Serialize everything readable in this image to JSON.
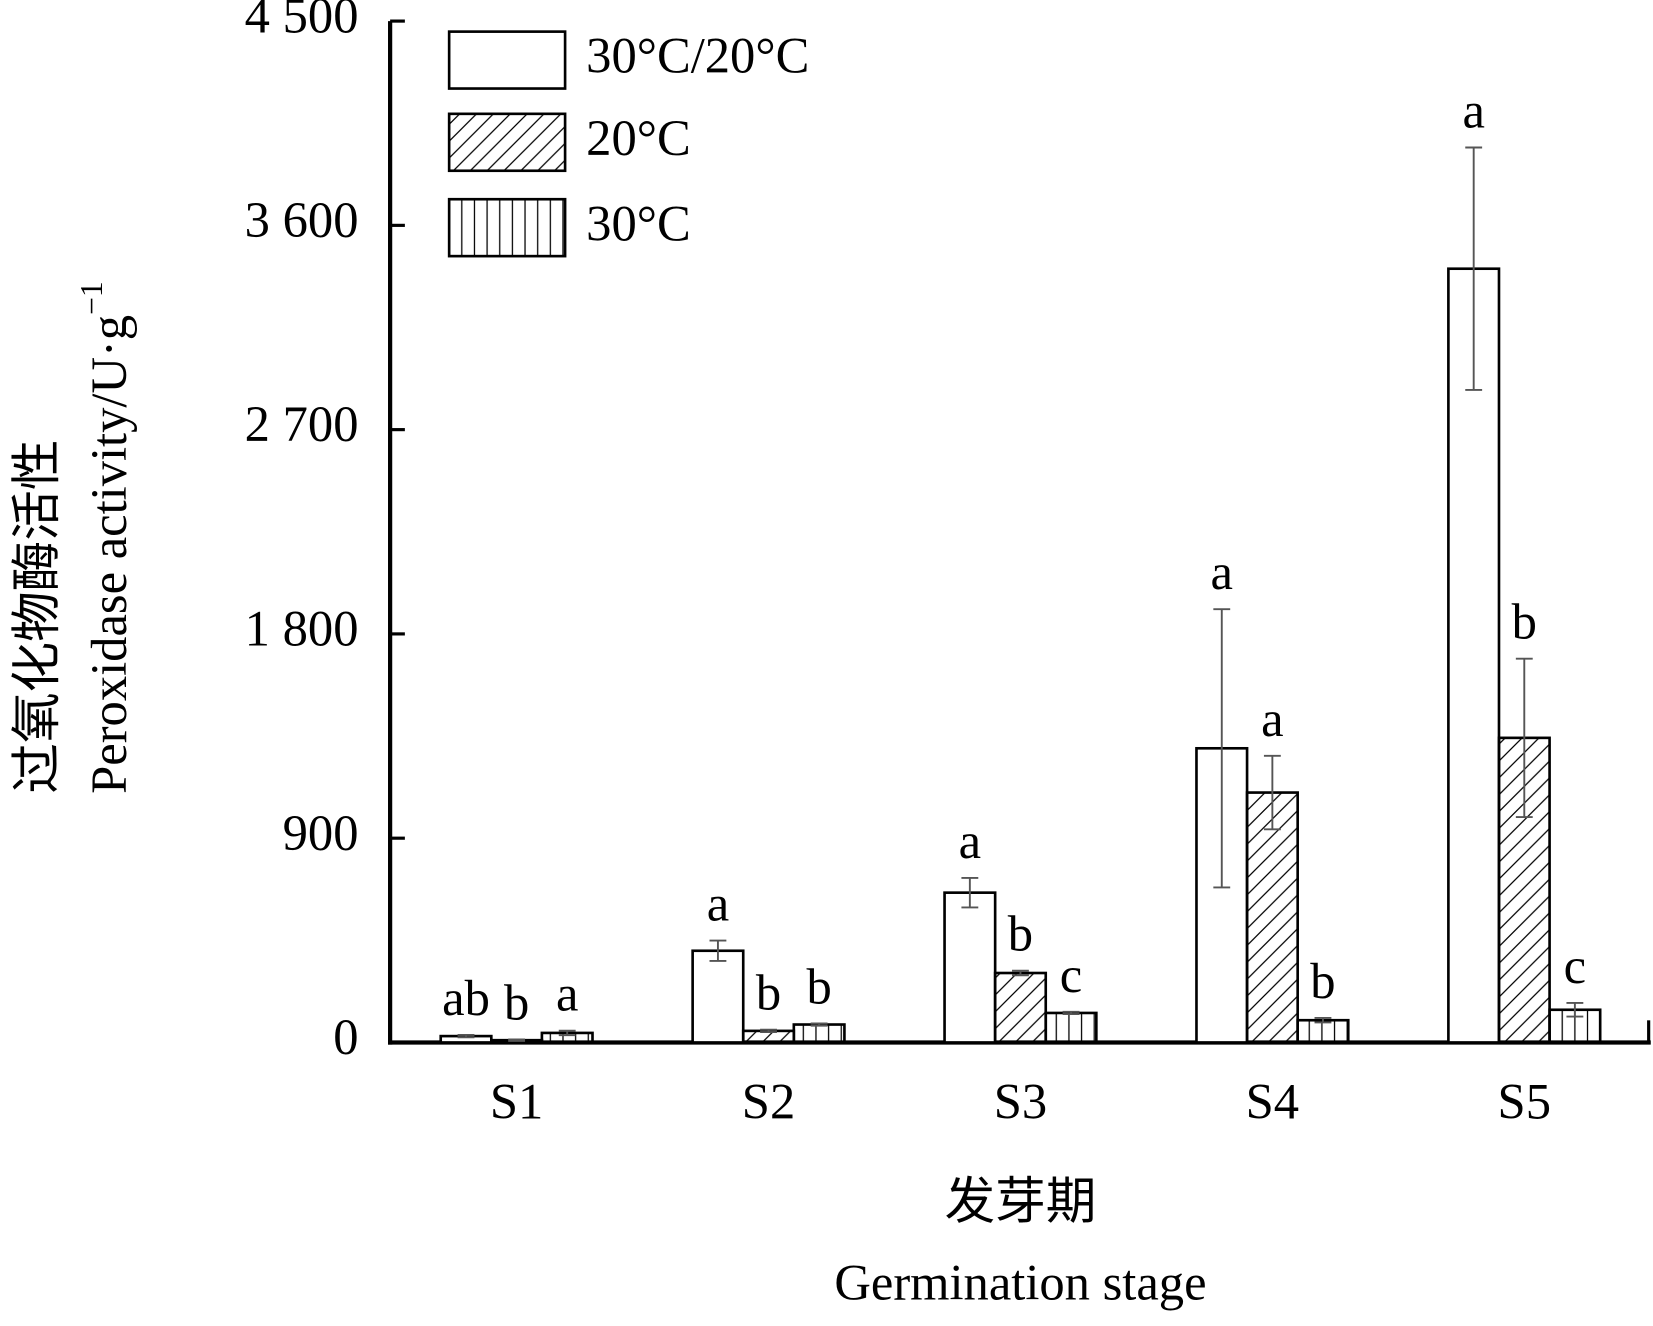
{
  "chart_data": {
    "type": "bar",
    "ylabel_cn": "过氧化物酶活性",
    "ylabel_en": "Peroxidase activity/U·g",
    "ylabel_sup": "−1",
    "xlabel_cn": "发芽期",
    "xlabel_en": "Germination stage",
    "categories": [
      "S1",
      "S2",
      "S3",
      "S4",
      "S5"
    ],
    "series": [
      {
        "name": "30°C/20°C",
        "color": "#000000",
        "pattern": "none",
        "values": [
          28,
          404,
          660,
          1296,
          3409
        ],
        "errors": [
          5,
          45,
          65,
          613,
          534
        ],
        "letters": [
          "ab",
          "a",
          "a",
          "a",
          "a"
        ]
      },
      {
        "name": "20°C",
        "color": "#000000",
        "pattern": "diagonal",
        "values": [
          10,
          51,
          306,
          1101,
          1342
        ],
        "errors": [
          3,
          5,
          10,
          162,
          349
        ],
        "letters": [
          "b",
          "b",
          "b",
          "a",
          "b"
        ]
      },
      {
        "name": "30°C",
        "color": "#000000",
        "pattern": "vertical",
        "values": [
          42,
          79,
          130,
          98,
          144
        ],
        "errors": [
          10,
          5,
          5,
          10,
          30
        ],
        "letters": [
          "a",
          "b",
          "c",
          "b",
          "c"
        ]
      }
    ],
    "ylim": [
      0,
      4500
    ],
    "yticks": [
      0,
      900,
      {
        "value": 1800,
        "label": "1 800"
      },
      {
        "value": 2700,
        "label": "2 700"
      },
      {
        "value": 3600,
        "label": "3 600"
      },
      {
        "value": 4500,
        "label": "4 500"
      }
    ],
    "grid": false
  }
}
